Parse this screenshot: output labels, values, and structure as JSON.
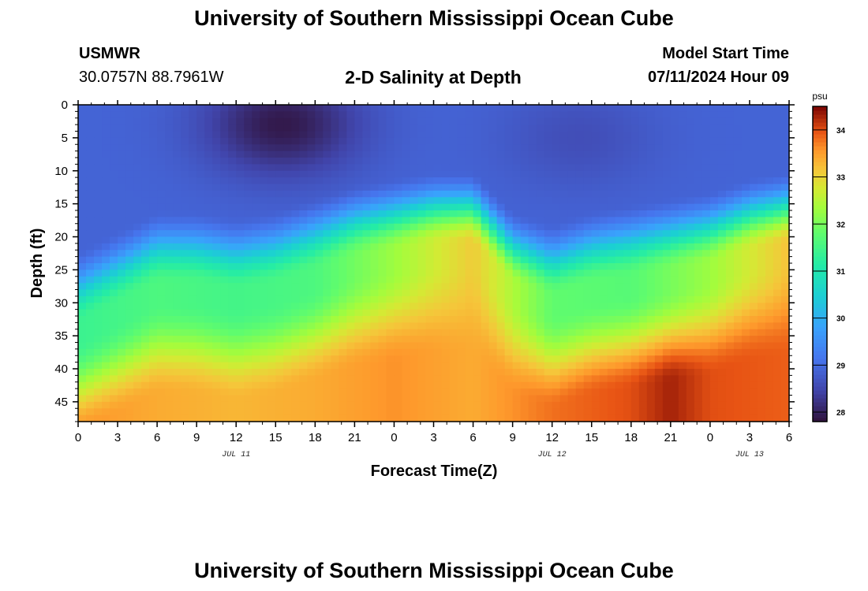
{
  "header": {
    "title": "University of Southern Mississippi Ocean Cube",
    "station_id": "USMWR",
    "station_coords": "30.0757N  88.7961W",
    "plot_title": "2-D Salinity at Depth",
    "model_label": "Model Start Time",
    "model_time": "07/11/2024 Hour 09"
  },
  "footer": {
    "title": "University of Southern Mississippi Ocean Cube"
  },
  "chart_data": {
    "type": "heatmap",
    "title": "2-D Salinity at Depth",
    "xlabel": "Forecast Time(Z)",
    "ylabel": "Depth (ft)",
    "x_tick_labels": [
      "0",
      "3",
      "6",
      "9",
      "12",
      "15",
      "18",
      "21",
      "0",
      "3",
      "6",
      "9",
      "12",
      "15",
      "18",
      "21",
      "0",
      "3",
      "6"
    ],
    "date_labels": [
      {
        "text": "JUL 11",
        "at_tick": 4
      },
      {
        "text": "JUL 12",
        "at_tick": 12
      },
      {
        "text": "JUL 13",
        "at_tick": 17
      }
    ],
    "y_ticks": [
      0,
      5,
      10,
      15,
      20,
      25,
      30,
      35,
      40,
      45
    ],
    "ylim": [
      0,
      48
    ],
    "xlim_hours": [
      0,
      54
    ],
    "colorbar": {
      "unit": "psu",
      "ticks": [
        28,
        29,
        30,
        31,
        32,
        33,
        34
      ],
      "range": [
        27.8,
        34.5
      ]
    },
    "salinity_model": {
      "halocline_depth_ft_by_hour": [
        [
          0,
          28
        ],
        [
          3,
          25
        ],
        [
          6,
          22
        ],
        [
          9,
          22
        ],
        [
          12,
          23
        ],
        [
          15,
          22
        ],
        [
          18,
          20
        ],
        [
          21,
          18
        ],
        [
          24,
          17
        ],
        [
          27,
          16
        ],
        [
          30,
          16
        ],
        [
          33,
          22
        ],
        [
          36,
          24
        ],
        [
          39,
          22
        ],
        [
          42,
          21
        ],
        [
          45,
          20
        ],
        [
          48,
          19
        ],
        [
          51,
          17
        ],
        [
          54,
          16
        ]
      ],
      "surface_psu": 28.9,
      "fresh_lens": [
        {
          "hour": 15.5,
          "depth_ft": 3,
          "psu": 27.9
        },
        {
          "hour": 38,
          "depth_ft": 5,
          "psu": 28.6
        }
      ],
      "mid_layer_psu_by_hour": [
        [
          0,
          31.4
        ],
        [
          6,
          31.6
        ],
        [
          12,
          31.5
        ],
        [
          18,
          31.6
        ],
        [
          24,
          32.3
        ],
        [
          30,
          33.1
        ],
        [
          36,
          31.8
        ],
        [
          42,
          31.7
        ],
        [
          48,
          32.3
        ],
        [
          54,
          33.2
        ]
      ],
      "bottom_psu_by_hour": [
        [
          0,
          33.6
        ],
        [
          6,
          33.4
        ],
        [
          12,
          33.3
        ],
        [
          18,
          33.4
        ],
        [
          24,
          33.6
        ],
        [
          30,
          33.4
        ],
        [
          36,
          33.8
        ],
        [
          42,
          34.0
        ],
        [
          45,
          34.3
        ],
        [
          48,
          34.0
        ],
        [
          54,
          33.9
        ]
      ]
    }
  }
}
